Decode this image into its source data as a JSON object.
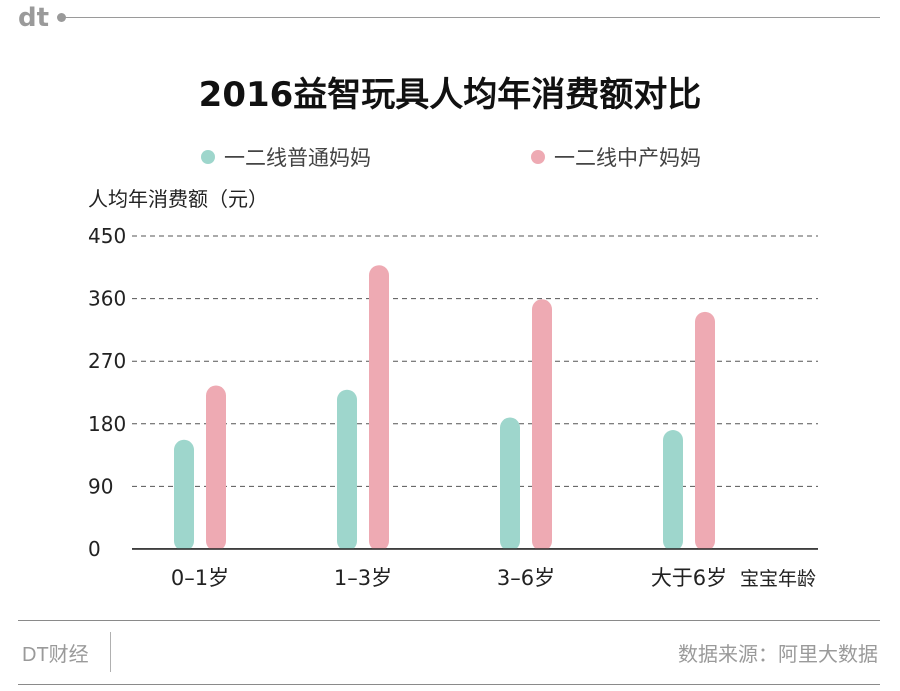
{
  "header": {
    "logo_text": "dt"
  },
  "colors": {
    "series1": "#9ed6cc",
    "series2": "#eeaab3",
    "grid": "#555555",
    "axis": "#222222",
    "footer": "#9a9a9a"
  },
  "chart_data": {
    "type": "bar",
    "title": "2016益智玩具人均年消费额对比",
    "ylabel": "人均年消费额（元）",
    "xlabel": "宝宝年龄",
    "categories": [
      "0–1岁",
      "1–3岁",
      "3–6岁",
      "大于6岁"
    ],
    "series": [
      {
        "name": "一二线普通妈妈",
        "values": [
          157,
          229,
          189,
          171
        ]
      },
      {
        "name": "一二线中产妈妈",
        "values": [
          235,
          408,
          359,
          341
        ]
      }
    ],
    "ylim": [
      0,
      450
    ],
    "yticks": [
      "0",
      "90",
      "180",
      "270",
      "360",
      "450"
    ],
    "grid": true,
    "legend_position": "top"
  },
  "footer": {
    "brand": "DT财经",
    "source": "数据来源：阿里大数据"
  }
}
